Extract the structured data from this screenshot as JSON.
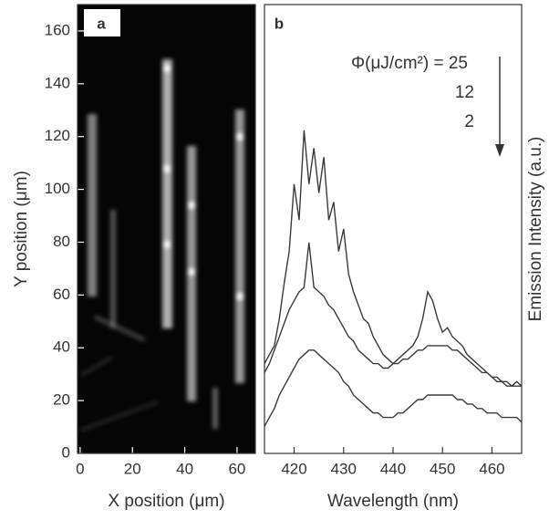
{
  "chart_data": [
    {
      "type": "image",
      "panel_label": "a",
      "x_label": "X position (μm)",
      "y_label": "Y position (μm)",
      "xlim": [
        -1,
        67
      ],
      "ylim": [
        0,
        170
      ],
      "xticks": [
        0,
        20,
        40,
        60
      ],
      "yticks": [
        0,
        20,
        40,
        60,
        80,
        100,
        120,
        140,
        160
      ],
      "background": "#050505",
      "tick_color": "#ffffff"
    },
    {
      "type": "line",
      "panel_label": "b",
      "x_label": "Wavelength (nm)",
      "y_label": "Emission Intensity (a.u.)",
      "xlim": [
        414,
        466
      ],
      "ylim": [
        0,
        100
      ],
      "xticks": [
        420,
        430,
        440,
        450,
        460
      ],
      "x": [
        414,
        415,
        416,
        417,
        418,
        419,
        420,
        421,
        422,
        423,
        424,
        425,
        426,
        427,
        428,
        429,
        430,
        431,
        432,
        433,
        434,
        435,
        436,
        437,
        438,
        439,
        440,
        441,
        442,
        443,
        444,
        445,
        446,
        447,
        448,
        449,
        450,
        451,
        452,
        453,
        454,
        455,
        456,
        457,
        458,
        459,
        460,
        461,
        462,
        463,
        464,
        465,
        466
      ],
      "series": [
        {
          "name": "Φ(μJ/cm²) = 25",
          "color": "#3a3a3a",
          "values": [
            20,
            22,
            24,
            30,
            38,
            45,
            60,
            52,
            72,
            60,
            68,
            58,
            66,
            52,
            56,
            45,
            50,
            40,
            36,
            33,
            30,
            29,
            26,
            24,
            22,
            21,
            20,
            21,
            22,
            23,
            24,
            26,
            30,
            36,
            34,
            30,
            27,
            28,
            26,
            25,
            24,
            22,
            21,
            20,
            19,
            18,
            17,
            16,
            16,
            15,
            15,
            16,
            15
          ]
        },
        {
          "name": "12",
          "color": "#3a3a3a",
          "values": [
            18,
            20,
            23,
            26,
            29,
            32,
            34,
            36,
            37,
            47,
            37,
            36,
            35,
            33,
            32,
            30,
            28,
            26,
            25,
            23,
            22,
            21,
            20,
            20,
            19,
            19,
            20,
            20,
            21,
            21,
            22,
            23,
            23,
            24,
            24,
            24,
            24,
            24,
            23,
            23,
            22,
            21,
            20,
            19,
            18,
            18,
            17,
            17,
            16,
            16,
            15,
            15,
            15
          ]
        },
        {
          "name": "2",
          "color": "#3a3a3a",
          "values": [
            6,
            8,
            10,
            13,
            15,
            17,
            19,
            21,
            22,
            23,
            23,
            22,
            21,
            20,
            19,
            18,
            16,
            15,
            13,
            12,
            11,
            10,
            9,
            9,
            8,
            8,
            8,
            9,
            9,
            10,
            11,
            12,
            12,
            13,
            13,
            13,
            13,
            13,
            13,
            12,
            12,
            11,
            11,
            10,
            10,
            9,
            9,
            9,
            8,
            8,
            8,
            8,
            7
          ]
        }
      ]
    }
  ]
}
